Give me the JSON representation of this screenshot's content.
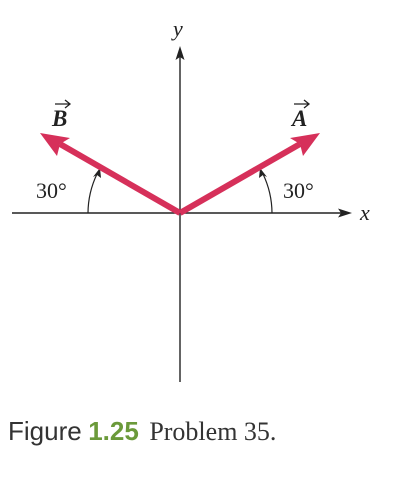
{
  "axes": {
    "x_label": "x",
    "y_label": "y"
  },
  "vectors": [
    {
      "label": "A",
      "angle_label": "30°"
    },
    {
      "label": "B",
      "angle_label": "30°"
    }
  ],
  "caption": {
    "prefix": "Figure",
    "number": "1.25",
    "text": "Problem 35."
  }
}
